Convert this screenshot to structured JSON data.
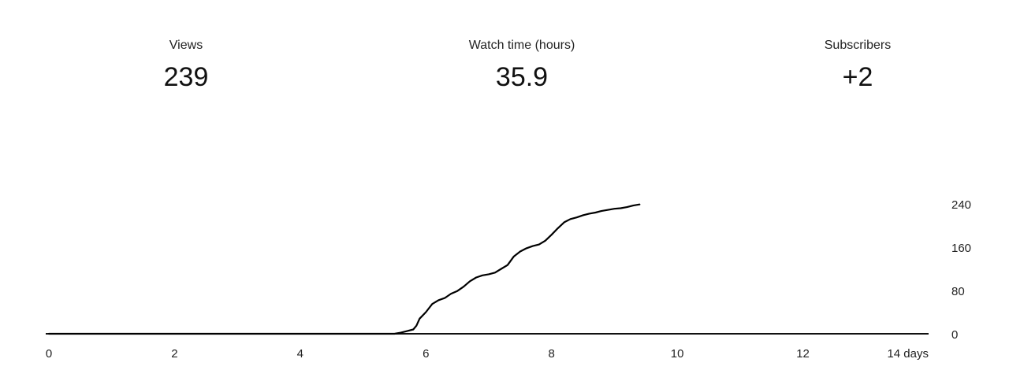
{
  "metrics": [
    {
      "label": "Views",
      "value": "239"
    },
    {
      "label": "Watch time (hours)",
      "value": "35.9"
    },
    {
      "label": "Subscribers",
      "value": "+2"
    }
  ],
  "chart_data": {
    "type": "line",
    "title": "",
    "xlabel": "",
    "ylabel": "",
    "xlim": [
      0,
      14
    ],
    "ylim": [
      0,
      240
    ],
    "x_tick_values": [
      0,
      2,
      4,
      6,
      8,
      10,
      12,
      14
    ],
    "x_tick_labels": [
      "0",
      "2",
      "4",
      "6",
      "8",
      "10",
      "12",
      "14 days"
    ],
    "y_tick_values": [
      0,
      80,
      160,
      240
    ],
    "y_tick_labels": [
      "0",
      "80",
      "160",
      "240"
    ],
    "y_axis_position": "right",
    "grid": false,
    "line_color": "#000000",
    "series": [
      {
        "values": [
          [
            0,
            0
          ],
          [
            5.0,
            0
          ],
          [
            5.5,
            0
          ],
          [
            5.6,
            2
          ],
          [
            5.7,
            5
          ],
          [
            5.8,
            8
          ],
          [
            5.85,
            15
          ],
          [
            5.9,
            28
          ],
          [
            6.0,
            40
          ],
          [
            6.1,
            55
          ],
          [
            6.2,
            62
          ],
          [
            6.3,
            66
          ],
          [
            6.4,
            74
          ],
          [
            6.5,
            79
          ],
          [
            6.6,
            87
          ],
          [
            6.7,
            97
          ],
          [
            6.8,
            104
          ],
          [
            6.9,
            108
          ],
          [
            7.0,
            110
          ],
          [
            7.1,
            113
          ],
          [
            7.2,
            120
          ],
          [
            7.3,
            127
          ],
          [
            7.4,
            143
          ],
          [
            7.5,
            152
          ],
          [
            7.6,
            158
          ],
          [
            7.7,
            162
          ],
          [
            7.8,
            165
          ],
          [
            7.9,
            172
          ],
          [
            8.0,
            183
          ],
          [
            8.1,
            195
          ],
          [
            8.2,
            206
          ],
          [
            8.3,
            212
          ],
          [
            8.4,
            215
          ],
          [
            8.5,
            219
          ],
          [
            8.6,
            222
          ],
          [
            8.7,
            224
          ],
          [
            8.8,
            227
          ],
          [
            8.9,
            229
          ],
          [
            9.0,
            231
          ],
          [
            9.1,
            232
          ],
          [
            9.2,
            234
          ],
          [
            9.3,
            237
          ],
          [
            9.4,
            239
          ]
        ]
      }
    ]
  }
}
